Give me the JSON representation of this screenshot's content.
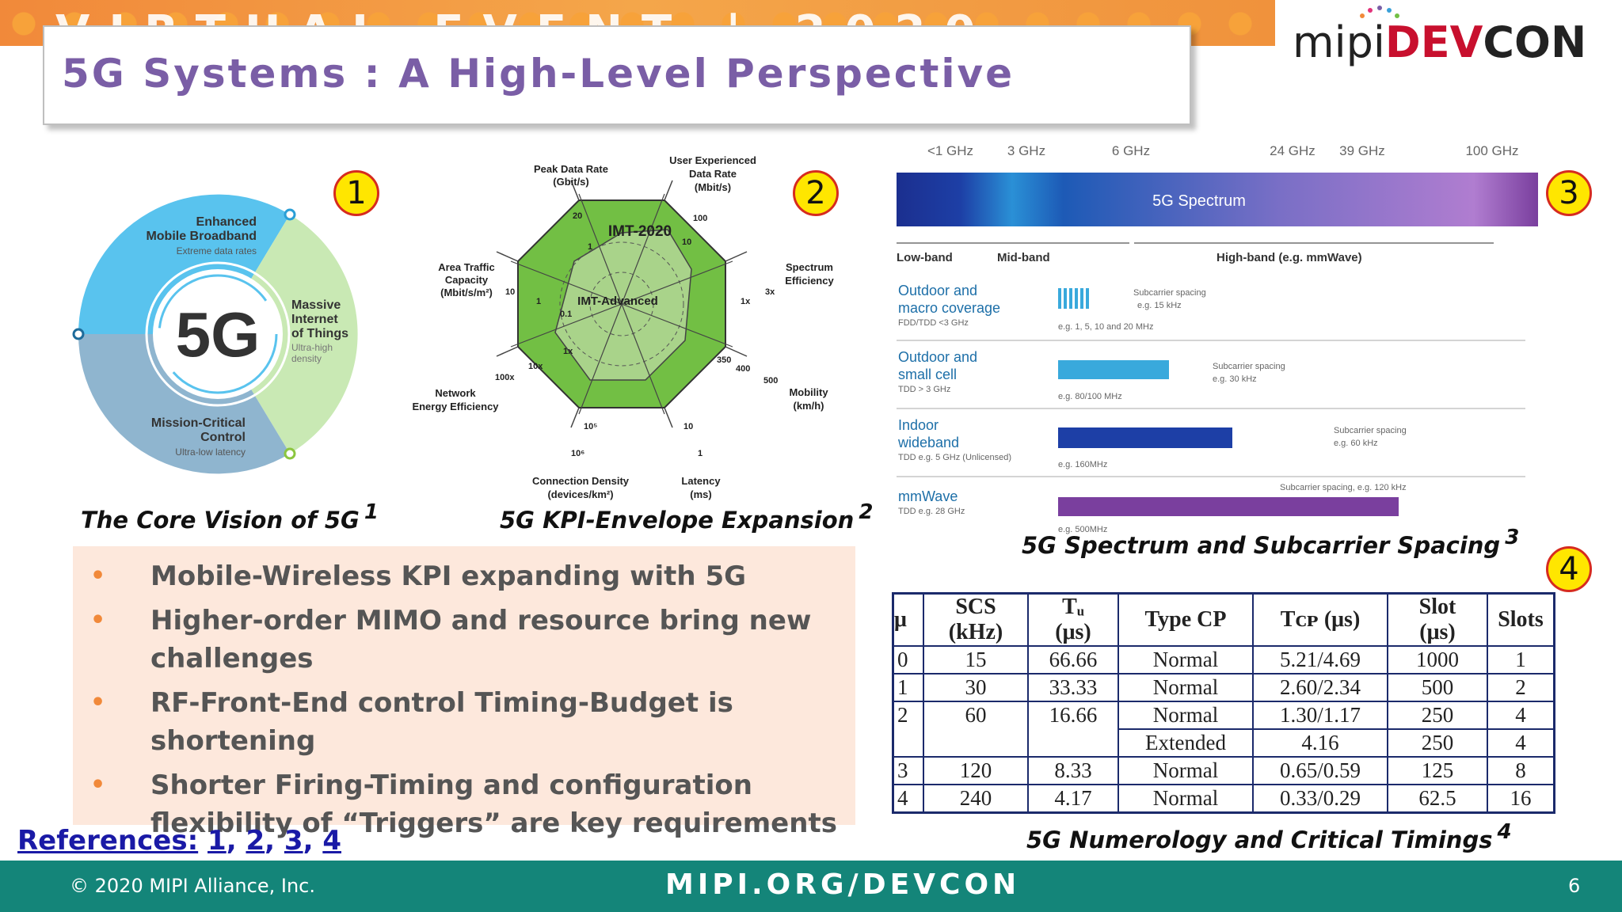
{
  "banner_text": "VIRTUAL EVENT | 2020",
  "title": "5G Systems : A High-Level Perspective",
  "logo": {
    "mipi": "mipi",
    "dev": "DEV",
    "con": "CON"
  },
  "badges": [
    "1",
    "2",
    "3",
    "4"
  ],
  "vision": {
    "center": "5G",
    "embb_title_1": "Enhanced",
    "embb_title_2": "Mobile Broadband",
    "embb_sub": "Extreme data rates",
    "miot_title_1": "Massive",
    "miot_title_2": "Internet",
    "miot_title_3": "of Things",
    "miot_sub_1": "Ultra-high",
    "miot_sub_2": "density",
    "mcc_title_1": "Mission-Critical",
    "mcc_title_2": "Control",
    "mcc_sub": "Ultra-low latency",
    "colors": {
      "embb": "#59c3ee",
      "miot": "#c9e9b4",
      "mcc": "#8fb5cf"
    }
  },
  "kpi": {
    "peak_1": "Peak Data Rate",
    "peak_2": "(Gbit/s)",
    "user_1": "User Experienced",
    "user_2": "Data Rate",
    "user_3": "(Mbit/s)",
    "spectrum_1": "Spectrum",
    "spectrum_2": "Efficiency",
    "mobility_1": "Mobility",
    "mobility_2": "(km/h)",
    "latency_1": "Latency",
    "latency_2": "(ms)",
    "conn_1": "Connection Density",
    "conn_2": "(devices/km²)",
    "energy_1": "Network",
    "energy_2": "Energy Efficiency",
    "area_1": "Area Traffic",
    "area_2": "Capacity",
    "area_3": "(Mbit/s/m²)",
    "imt2020": "IMT-2020",
    "imtadv": "IMT-Advanced",
    "ticks": {
      "t20": "20",
      "t1a": "1",
      "t100": "100",
      "t10a": "10",
      "t1x": "1x",
      "t3x": "3x",
      "t350": "350",
      "t400": "400",
      "t500": "500",
      "t1b": "1",
      "t10b": "10",
      "t105": "10⁵",
      "t106": "10⁶",
      "t100x": "100x",
      "t10x": "10x",
      "t1xb": "1x",
      "t01": "0.1",
      "t1c": "1",
      "t10c": "10"
    }
  },
  "spectrum": {
    "freqs": [
      "<1 GHz",
      "3 GHz",
      "6 GHz",
      "24 GHz",
      "39 GHz",
      "100 GHz"
    ],
    "bar_label": "5G Spectrum",
    "bands": [
      "Low-band",
      "Mid-band",
      "High-band (e.g. mmWave)"
    ],
    "rows": [
      {
        "name_1": "Outdoor and",
        "name_2": "macro coverage",
        "sub": "FDD/TDD <3 GHz",
        "spacing_1": "Subcarrier spacing",
        "spacing_2": "e.g. 15 kHz",
        "bw": "e.g. 1, 5, 10 and 20 MHz"
      },
      {
        "name_1": "Outdoor and",
        "name_2": "small cell",
        "sub": "TDD > 3 GHz",
        "spacing_1": "Subcarrier spacing",
        "spacing_2": "e.g. 30 kHz",
        "bw": "e.g. 80/100 MHz"
      },
      {
        "name_1": "Indoor",
        "name_2": "wideband",
        "sub": "TDD e.g. 5 GHz (Unlicensed)",
        "spacing_1": "Subcarrier spacing",
        "spacing_2": "e.g. 60 kHz",
        "bw": "e.g. 160MHz"
      },
      {
        "name_1": "mmWave",
        "name_2": "",
        "sub": "TDD e.g. 28 GHz",
        "spacing_1": "Subcarrier spacing, e.g. 120 kHz",
        "spacing_2": "",
        "bw": "e.g. 500MHz"
      }
    ]
  },
  "captions": {
    "c1": "The Core Vision of 5G",
    "c1_ref": "1",
    "c2": "5G KPI-Envelope Expansion",
    "c2_ref": "2",
    "c3": "5G Spectrum and Subcarrier Spacing",
    "c3_ref": "3",
    "c4": "5G Numerology and Critical Timings",
    "c4_ref": "4"
  },
  "bullets": [
    "Mobile-Wireless KPI  expanding with 5G",
    "Higher-order MIMO and resource bring new challenges",
    "RF-Front-End control Timing-Budget is shortening",
    "Shorter Firing-Timing and configuration flexibility of “Triggers” are key requirements"
  ],
  "bullet_symbol": "•",
  "references": {
    "label": "References:",
    "links": [
      "1",
      "2",
      "3",
      "4"
    ]
  },
  "table": {
    "headers": {
      "mu": "μ",
      "scs_1": "SCS",
      "scs_2": "(kHz)",
      "tu_1": "Tᵤ",
      "tu_2": "(μs)",
      "cp": "Type CP",
      "tcp": "Tᴄᴘ (μs)",
      "slot_1": "Slot",
      "slot_2": "(μs)",
      "slots": "Slots"
    },
    "rows": [
      {
        "mu": "0",
        "scs": "15",
        "tu": "66.66",
        "cp": "Normal",
        "tcp": "5.21/4.69",
        "slot": "1000",
        "slots": "1"
      },
      {
        "mu": "1",
        "scs": "30",
        "tu": "33.33",
        "cp": "Normal",
        "tcp": "2.60/2.34",
        "slot": "500",
        "slots": "2"
      },
      {
        "mu": "2",
        "scs": "60",
        "tu": "16.66",
        "cp": "Normal",
        "tcp": "1.30/1.17",
        "slot": "250",
        "slots": "4"
      },
      {
        "cp": "Extended",
        "tcp": "4.16",
        "slot": "250",
        "slots": "4"
      },
      {
        "mu": "3",
        "scs": "120",
        "tu": "8.33",
        "cp": "Normal",
        "tcp": "0.65/0.59",
        "slot": "125",
        "slots": "8"
      },
      {
        "mu": "4",
        "scs": "240",
        "tu": "4.17",
        "cp": "Normal",
        "tcp": "0.33/0.29",
        "slot": "62.5",
        "slots": "16"
      }
    ]
  },
  "footer": {
    "copyright": "© 2020 MIPI Alliance, Inc.",
    "site": "MIPI.ORG/DEVCON",
    "page": "6"
  },
  "colors": {
    "title": "#7a5ea6",
    "footer": "#148579",
    "banner": "#f1893a",
    "badge_fill": "#ffe600",
    "badge_ring": "#d62b1f",
    "radar_green": "#72bf44",
    "table_border": "#1b2a6b"
  }
}
